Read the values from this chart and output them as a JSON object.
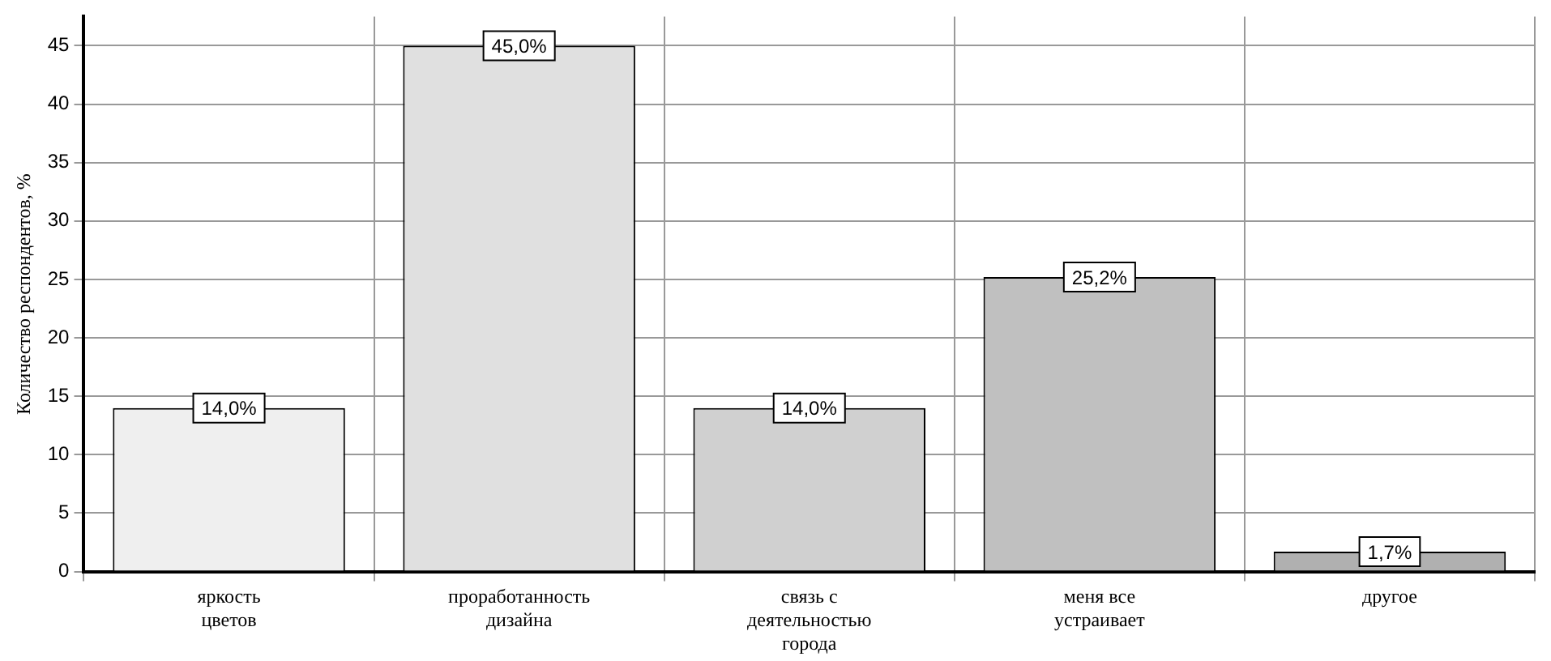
{
  "chart_data": {
    "type": "bar",
    "ylabel": "Количество респондентов, %",
    "categories": [
      "яркость\nцветов",
      "проработанность\nдизайна",
      "связь с\nдеятельностью\nгорода",
      "меня все\nустраивает",
      "другое"
    ],
    "values": [
      14.0,
      45.0,
      14.0,
      25.2,
      1.7
    ],
    "colors": [
      "#efefef",
      "#e0e0e0",
      "#d0d0d0",
      "#c0c0c0",
      "#b0b0b0"
    ],
    "value_labels": [
      "14,0%",
      "45,0%",
      "14,0%",
      "25,2%",
      "1,7%"
    ],
    "ylim": [
      0,
      47.5
    ],
    "yticks": [
      0,
      5,
      10,
      15,
      20,
      25,
      30,
      35,
      40,
      45
    ],
    "grid": true,
    "legend": false
  }
}
